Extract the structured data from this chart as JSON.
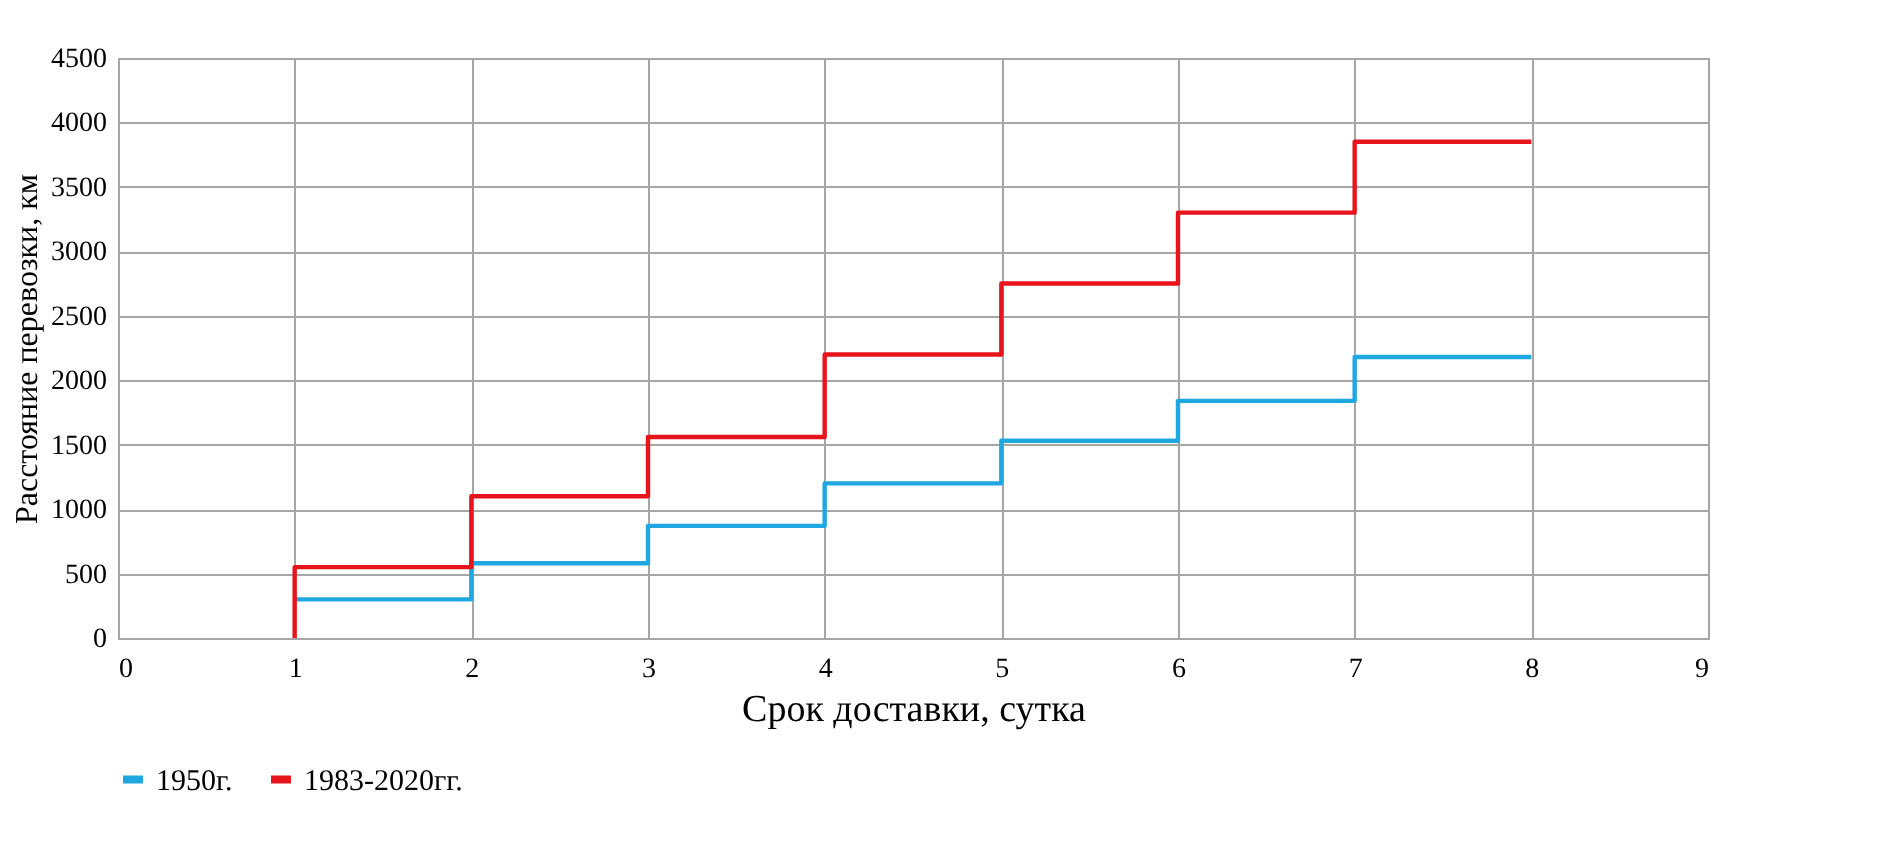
{
  "chart_data": {
    "type": "step",
    "xlabel": "Срок доставки, сутка",
    "ylabel": "Расстояние перевозки, км",
    "series": [
      {
        "name": "1950г.",
        "color": "#1ea7e1",
        "x": [
          1,
          2,
          3,
          4,
          5,
          6,
          7,
          8
        ],
        "values": [
          300,
          580,
          870,
          1200,
          1530,
          1840,
          2180,
          2180
        ]
      },
      {
        "name": "1983-2020гг.",
        "color": "#e8141c",
        "x": [
          1,
          1,
          2,
          3,
          4,
          5,
          6,
          7,
          8
        ],
        "values": [
          0,
          550,
          1100,
          1560,
          2200,
          2750,
          3300,
          3850,
          3850
        ]
      }
    ],
    "xlim": [
      0,
      9
    ],
    "xticks": [
      0,
      1,
      2,
      3,
      4,
      5,
      6,
      7,
      8,
      9
    ],
    "ylim": [
      0,
      4500
    ],
    "yticks": [
      0,
      500,
      1000,
      1500,
      2000,
      2500,
      3000,
      3500,
      4000,
      4500
    ],
    "grid": true,
    "legend": "bottom",
    "marker": "none",
    "line_style": "solid"
  }
}
